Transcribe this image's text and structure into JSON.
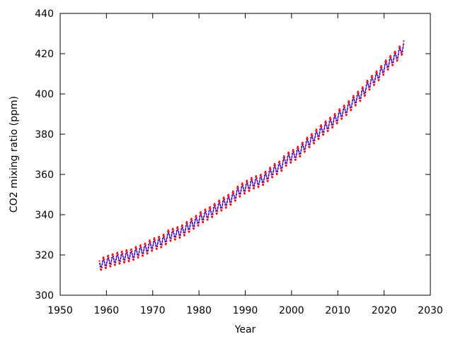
{
  "chart_data": {
    "type": "scatter",
    "title": "",
    "xlabel": "Year",
    "ylabel": "CO2 mixing ratio (ppm)",
    "xlim": [
      1950,
      2030
    ],
    "ylim": [
      300,
      440
    ],
    "xticks": [
      1950,
      1960,
      1970,
      1980,
      1990,
      2000,
      2010,
      2020,
      2030
    ],
    "yticks": [
      300,
      320,
      340,
      360,
      380,
      400,
      420,
      440
    ],
    "grid": false,
    "legend": "none",
    "series": [
      {
        "kind": "points",
        "color": "#ff0000",
        "marker": "dot",
        "x": [
          1958.5,
          1959.5,
          1960.5,
          1961.5,
          1962.5,
          1963.5,
          1964.5,
          1965.5,
          1966.5,
          1967.5,
          1968.5,
          1969.5,
          1970.5,
          1971.5,
          1972.5,
          1973.5,
          1974.5,
          1975.5,
          1976.5,
          1977.5,
          1978.5,
          1979.5,
          1980.5,
          1981.5,
          1982.5,
          1983.5,
          1984.5,
          1985.5,
          1986.5,
          1987.5,
          1988.5,
          1989.5,
          1990.5,
          1991.5,
          1992.5,
          1993.5,
          1994.5,
          1995.5,
          1996.5,
          1997.5,
          1998.5,
          1999.5,
          2000.5,
          2001.5,
          2002.5,
          2003.5,
          2004.5,
          2005.5,
          2006.5,
          2007.5,
          2008.5,
          2009.5,
          2010.5,
          2011.5,
          2012.5,
          2013.5,
          2014.5,
          2015.5,
          2016.5,
          2017.5,
          2018.5,
          2019.5,
          2020.5,
          2021.5,
          2022.5,
          2023.5,
          2024.3
        ],
        "y": [
          315.2,
          316.0,
          316.9,
          317.6,
          318.4,
          318.9,
          319.6,
          320.0,
          321.3,
          322.1,
          323.0,
          324.6,
          325.6,
          326.3,
          327.4,
          329.7,
          330.2,
          331.1,
          332.0,
          333.8,
          335.4,
          336.8,
          338.7,
          339.9,
          341.1,
          342.8,
          344.4,
          345.9,
          347.2,
          349.0,
          351.4,
          352.9,
          354.2,
          355.6,
          356.4,
          357.1,
          358.8,
          360.8,
          362.6,
          363.7,
          366.6,
          368.3,
          369.5,
          371.1,
          373.2,
          375.8,
          377.5,
          379.8,
          381.9,
          383.8,
          385.6,
          387.4,
          389.9,
          391.6,
          393.9,
          396.5,
          398.6,
          400.8,
          404.2,
          406.5,
          408.7,
          411.4,
          414.2,
          416.4,
          418.5,
          421.1,
          424.0
        ]
      },
      {
        "kind": "line",
        "color": "#0000ff",
        "x": [
          1958.5,
          1959.5,
          1960.5,
          1961.5,
          1962.5,
          1963.5,
          1964.5,
          1965.5,
          1966.5,
          1967.5,
          1968.5,
          1969.5,
          1970.5,
          1971.5,
          1972.5,
          1973.5,
          1974.5,
          1975.5,
          1976.5,
          1977.5,
          1978.5,
          1979.5,
          1980.5,
          1981.5,
          1982.5,
          1983.5,
          1984.5,
          1985.5,
          1986.5,
          1987.5,
          1988.5,
          1989.5,
          1990.5,
          1991.5,
          1992.5,
          1993.5,
          1994.5,
          1995.5,
          1996.5,
          1997.5,
          1998.5,
          1999.5,
          2000.5,
          2001.5,
          2002.5,
          2003.5,
          2004.5,
          2005.5,
          2006.5,
          2007.5,
          2008.5,
          2009.5,
          2010.5,
          2011.5,
          2012.5,
          2013.5,
          2014.5,
          2015.5,
          2016.5,
          2017.5,
          2018.5,
          2019.5,
          2020.5,
          2021.5,
          2022.5,
          2023.5,
          2024.3
        ],
        "y": [
          315.2,
          316.0,
          316.9,
          317.6,
          318.4,
          318.9,
          319.6,
          320.0,
          321.3,
          322.1,
          323.0,
          324.6,
          325.6,
          326.3,
          327.4,
          329.7,
          330.2,
          331.1,
          332.0,
          333.8,
          335.4,
          336.8,
          338.7,
          339.9,
          341.1,
          342.8,
          344.4,
          345.9,
          347.2,
          349.0,
          351.4,
          352.9,
          354.2,
          355.6,
          356.4,
          357.1,
          358.8,
          360.8,
          362.6,
          363.7,
          366.6,
          368.3,
          369.5,
          371.1,
          373.2,
          375.8,
          377.5,
          379.8,
          381.9,
          383.8,
          385.6,
          387.4,
          389.9,
          391.6,
          393.9,
          396.5,
          398.6,
          400.8,
          404.2,
          406.5,
          408.7,
          411.4,
          414.2,
          416.4,
          418.5,
          421.1,
          424.0
        ]
      }
    ],
    "seasonal_amplitude_ppm": 3.0
  }
}
